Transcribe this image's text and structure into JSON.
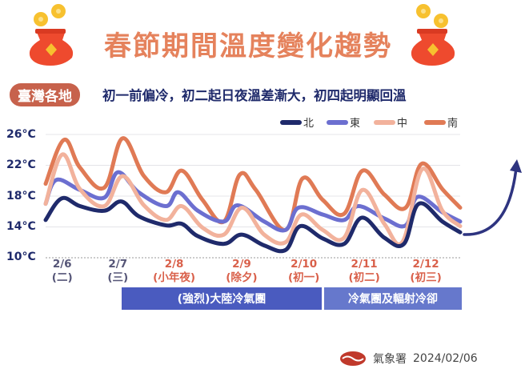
{
  "header": {
    "title": "春節期間溫度變化趨勢",
    "badge": "臺灣各地",
    "subtitle": "初一前偏冷，初二起日夜溫差漸大，初四起明顯回溫",
    "icon": "red-lucky-bag-with-coins-icon"
  },
  "colors": {
    "north": "#1f2a6b",
    "east": "#6c6fd0",
    "central": "#f2b29c",
    "south": "#e07a55",
    "title": "#e5825c",
    "bar1": "#4a5bbf",
    "bar2": "#6678cc"
  },
  "chart_data": {
    "type": "line",
    "ylim": [
      10,
      26
    ],
    "xlim": [
      6.0,
      13.0
    ],
    "yticks": [
      "26°C",
      "22°C",
      "18°C",
      "14°C",
      "10°C"
    ],
    "ytick_values": [
      26,
      22,
      18,
      14,
      10
    ],
    "grid": true,
    "legend_position": "top-right",
    "xticks": [
      {
        "x": 6.28,
        "date": "2/6",
        "day": "(二)",
        "color": "#555577"
      },
      {
        "x": 7.22,
        "date": "2/7",
        "day": "(三)",
        "color": "#555577"
      },
      {
        "x": 8.17,
        "date": "2/8",
        "day": "(小年夜)",
        "color": "#d9604a"
      },
      {
        "x": 9.31,
        "date": "2/9",
        "day": "(除夕)",
        "color": "#d9604a"
      },
      {
        "x": 10.36,
        "date": "2/10",
        "day": "(初一)",
        "color": "#d9604a"
      },
      {
        "x": 11.38,
        "date": "2/11",
        "day": "(初二)",
        "color": "#d9604a"
      },
      {
        "x": 12.42,
        "date": "2/12",
        "day": "(初三)",
        "color": "#d9604a"
      }
    ],
    "series": [
      {
        "name": "北",
        "key": "north",
        "points": [
          [
            6.0,
            14.9
          ],
          [
            6.27,
            17.7
          ],
          [
            6.58,
            16.7
          ],
          [
            6.99,
            16.1
          ],
          [
            7.28,
            17.3
          ],
          [
            7.57,
            15.4
          ],
          [
            8.03,
            14.2
          ],
          [
            8.3,
            14.4
          ],
          [
            8.57,
            12.8
          ],
          [
            9.01,
            11.8
          ],
          [
            9.31,
            13.0
          ],
          [
            9.69,
            11.6
          ],
          [
            10.05,
            11.0
          ],
          [
            10.3,
            14.1
          ],
          [
            10.68,
            12.5
          ],
          [
            11.04,
            11.8
          ],
          [
            11.34,
            15.2
          ],
          [
            11.72,
            12.6
          ],
          [
            12.05,
            11.8
          ],
          [
            12.3,
            17.0
          ],
          [
            12.7,
            14.7
          ],
          [
            13.0,
            13.3
          ]
        ]
      },
      {
        "name": "東",
        "key": "east",
        "points": [
          [
            6.0,
            17.0
          ],
          [
            6.18,
            20.1
          ],
          [
            6.58,
            18.8
          ],
          [
            6.99,
            17.8
          ],
          [
            7.22,
            21.1
          ],
          [
            7.57,
            18.5
          ],
          [
            8.03,
            16.7
          ],
          [
            8.24,
            18.5
          ],
          [
            8.57,
            16.1
          ],
          [
            9.01,
            14.7
          ],
          [
            9.24,
            16.8
          ],
          [
            9.69,
            14.7
          ],
          [
            10.05,
            13.6
          ],
          [
            10.27,
            16.5
          ],
          [
            10.68,
            15.6
          ],
          [
            11.04,
            14.9
          ],
          [
            11.28,
            16.7
          ],
          [
            11.72,
            15.1
          ],
          [
            12.08,
            14.2
          ],
          [
            12.28,
            17.9
          ],
          [
            12.7,
            15.9
          ],
          [
            13.0,
            14.7
          ]
        ]
      },
      {
        "name": "中",
        "key": "central",
        "points": [
          [
            6.0,
            17.0
          ],
          [
            6.28,
            23.4
          ],
          [
            6.58,
            18.9
          ],
          [
            6.99,
            16.7
          ],
          [
            7.3,
            20.6
          ],
          [
            7.66,
            16.8
          ],
          [
            8.03,
            14.9
          ],
          [
            8.3,
            16.7
          ],
          [
            8.65,
            13.9
          ],
          [
            9.01,
            13.0
          ],
          [
            9.32,
            16.5
          ],
          [
            9.69,
            13.0
          ],
          [
            10.05,
            12.0
          ],
          [
            10.32,
            15.6
          ],
          [
            10.68,
            13.6
          ],
          [
            11.04,
            12.6
          ],
          [
            11.35,
            18.8
          ],
          [
            11.72,
            14.4
          ],
          [
            12.03,
            12.1
          ],
          [
            12.36,
            21.5
          ],
          [
            12.7,
            16.1
          ],
          [
            13.0,
            14.1
          ]
        ]
      },
      {
        "name": "南",
        "key": "south",
        "points": [
          [
            6.0,
            19.6
          ],
          [
            6.31,
            25.3
          ],
          [
            6.58,
            21.7
          ],
          [
            6.99,
            19.1
          ],
          [
            7.3,
            25.5
          ],
          [
            7.66,
            20.6
          ],
          [
            8.03,
            18.5
          ],
          [
            8.3,
            21.3
          ],
          [
            8.65,
            17.5
          ],
          [
            9.01,
            14.7
          ],
          [
            9.28,
            20.8
          ],
          [
            9.55,
            18.8
          ],
          [
            10.05,
            13.6
          ],
          [
            10.34,
            20.3
          ],
          [
            10.68,
            17.5
          ],
          [
            11.04,
            15.7
          ],
          [
            11.35,
            21.3
          ],
          [
            11.72,
            18.2
          ],
          [
            12.08,
            16.5
          ],
          [
            12.35,
            22.2
          ],
          [
            12.7,
            18.9
          ],
          [
            13.0,
            16.5
          ]
        ]
      }
    ],
    "annotation": "rising-arrow"
  },
  "periods": [
    {
      "label": "(強烈)大陸冷氣團"
    },
    {
      "label": "冷氣團及輻射冷卻"
    }
  ],
  "footer": {
    "agency": "氣象署",
    "date": "2024/02/06",
    "logo": "cwa-logo-icon"
  }
}
